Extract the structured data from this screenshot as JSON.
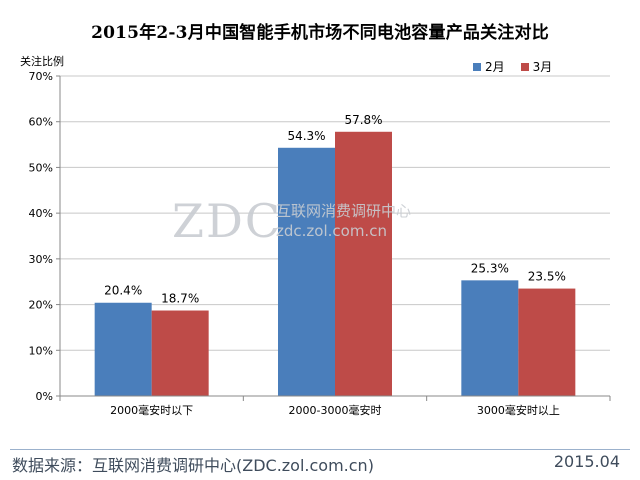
{
  "chart_data": {
    "type": "bar",
    "title": "2015年2-3月中国智能手机市场不同电池容量产品关注对比",
    "ylabel": "关注比例",
    "xlabel": "",
    "categories": [
      "2000毫安时以下",
      "2000-3000毫安时",
      "3000毫安时以上"
    ],
    "series": [
      {
        "name": "2月",
        "color": "#4a7ebb",
        "values": [
          20.4,
          54.3,
          25.3
        ],
        "labels": [
          "20.4%",
          "54.3%",
          "25.3%"
        ]
      },
      {
        "name": "3月",
        "color": "#be4b48",
        "values": [
          18.7,
          57.8,
          23.5
        ],
        "labels": [
          "18.7%",
          "57.8%",
          "23.5%"
        ]
      }
    ],
    "ylim": [
      0,
      70
    ],
    "yticks": [
      "0%",
      "10%",
      "20%",
      "30%",
      "40%",
      "50%",
      "60%",
      "70%"
    ],
    "grid": true,
    "legend_position": "top-right"
  },
  "watermark": {
    "logo": "ZDC",
    "name": "互联网消费调研中心",
    "url": "zdc.zol.com.cn"
  },
  "footer": {
    "source": "数据来源：互联网消费调研中心(ZDC.zol.com.cn)",
    "date": "2015.04"
  }
}
